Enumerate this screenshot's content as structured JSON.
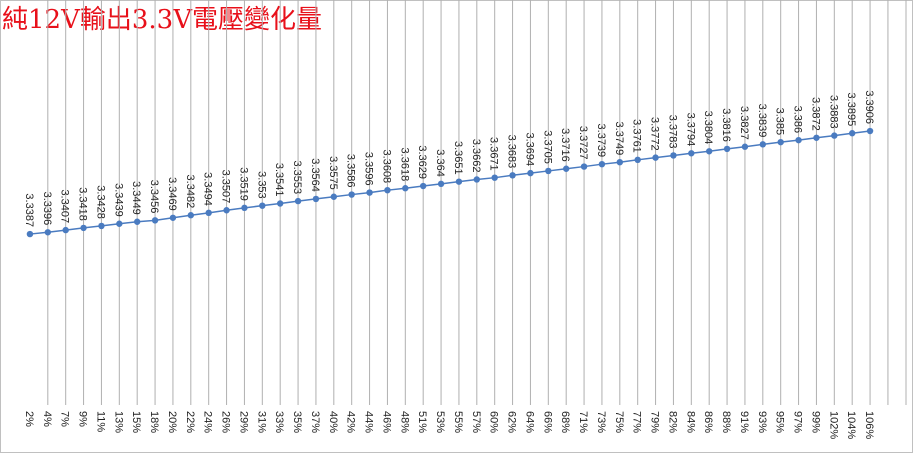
{
  "chart_data": {
    "type": "line",
    "title": "純12V輸出3.3V電壓變化量",
    "categories": [
      "2%",
      "4%",
      "7%",
      "9%",
      "11%",
      "13%",
      "15%",
      "18%",
      "20%",
      "22%",
      "24%",
      "26%",
      "29%",
      "31%",
      "33%",
      "35%",
      "37%",
      "40%",
      "42%",
      "44%",
      "46%",
      "48%",
      "51%",
      "53%",
      "55%",
      "57%",
      "60%",
      "62%",
      "64%",
      "66%",
      "68%",
      "71%",
      "73%",
      "75%",
      "77%",
      "79%",
      "82%",
      "84%",
      "86%",
      "88%",
      "91%",
      "93%",
      "95%",
      "97%",
      "99%",
      "102%",
      "104%",
      "106%"
    ],
    "series": [
      {
        "color": "#4a7bc0",
        "values": [
          3.3387,
          3.3396,
          3.3407,
          3.3418,
          3.3428,
          3.3439,
          3.3449,
          3.3456,
          3.3469,
          3.3482,
          3.3494,
          3.3507,
          3.3519,
          3.353,
          3.3541,
          3.3553,
          3.3564,
          3.3575,
          3.3586,
          3.3596,
          3.3608,
          3.3618,
          3.3629,
          3.364,
          3.3651,
          3.3662,
          3.3671,
          3.3683,
          3.3694,
          3.3705,
          3.3716,
          3.3727,
          3.3739,
          3.3749,
          3.3761,
          3.3772,
          3.3783,
          3.3794,
          3.3804,
          3.3816,
          3.3827,
          3.3839,
          3.385,
          3.386,
          3.3872,
          3.3883,
          3.3895,
          3.3906
        ]
      }
    ],
    "ylim": [
      3.2526,
      3.4566
    ]
  }
}
